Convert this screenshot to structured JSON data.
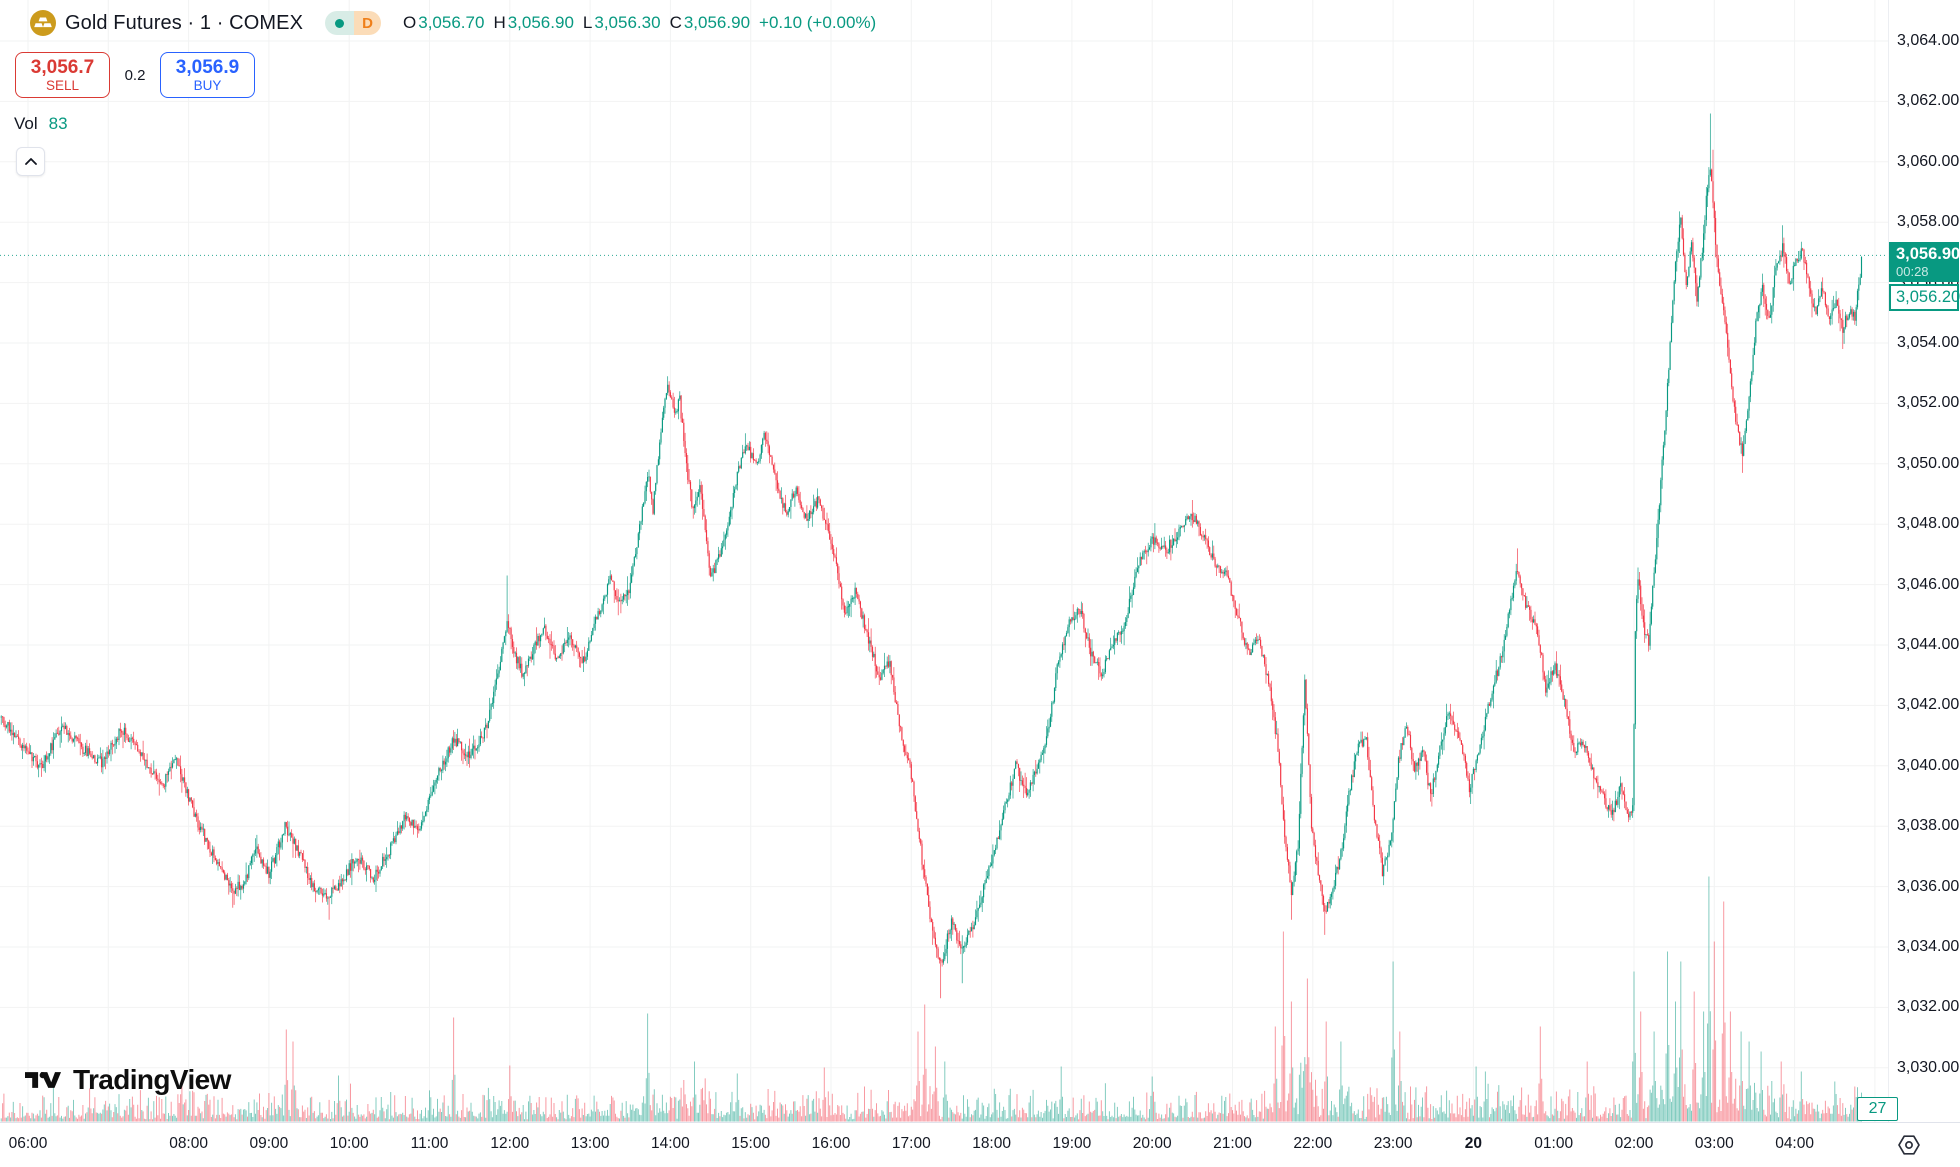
{
  "header": {
    "symbol_title": "Gold Futures · 1 · COMEX",
    "interval_letter": "D",
    "ohlc": {
      "o_label": "O",
      "o": "3,056.70",
      "h_label": "H",
      "h": "3,056.90",
      "l_label": "L",
      "l": "3,056.30",
      "c_label": "C",
      "c": "3,056.90",
      "change": "+0.10 (+0.00%)"
    },
    "sell_button": {
      "price": "3,056.7",
      "label": "SELL"
    },
    "spread": "0.2",
    "buy_button": {
      "price": "3,056.9",
      "label": "BUY"
    },
    "volume_row": {
      "label": "Vol",
      "value": "83"
    }
  },
  "last_price_label": {
    "price": "3,056.90",
    "countdown": "00:28"
  },
  "secondary_price_label": "3,056.20",
  "volume_axis_label": "27",
  "logo_text": "TradingView",
  "colors": {
    "up": "#089981",
    "down": "#f23645",
    "vol_up": "rgba(8,153,129,0.5)",
    "vol_down": "rgba(242,54,69,0.5)",
    "sell_red": "#da3a34",
    "buy_blue": "#2962ff",
    "accent_teal": "#089981",
    "interval_orange": "#ef7f1a",
    "grid": "rgba(42,46,57,0.06)",
    "text": "#131722"
  },
  "price_axis": {
    "ticks": [
      {
        "price": 3064,
        "label": "3,064.00"
      },
      {
        "price": 3062,
        "label": "3,062.00"
      },
      {
        "price": 3060,
        "label": "3,060.00"
      },
      {
        "price": 3058,
        "label": "3,058.00"
      },
      {
        "price": 3056,
        "label": "3,056.00"
      },
      {
        "price": 3054,
        "label": "3,054.00"
      },
      {
        "price": 3052,
        "label": "3,052.00"
      },
      {
        "price": 3050,
        "label": "3,050.00"
      },
      {
        "price": 3048,
        "label": "3,048.00"
      },
      {
        "price": 3046,
        "label": "3,046.00"
      },
      {
        "price": 3044,
        "label": "3,044.00"
      },
      {
        "price": 3042,
        "label": "3,042.00"
      },
      {
        "price": 3040,
        "label": "3,040.00"
      },
      {
        "price": 3038,
        "label": "3,038.00"
      },
      {
        "price": 3036,
        "label": "3,036.00"
      },
      {
        "price": 3034,
        "label": "3,034.00"
      },
      {
        "price": 3032,
        "label": "3,032.00"
      },
      {
        "price": 3030,
        "label": "3,030.00"
      }
    ]
  },
  "time_axis": {
    "grid_hours": [
      0,
      1,
      2,
      3,
      4,
      5,
      6,
      7,
      8,
      9,
      10,
      11,
      12,
      13,
      14,
      15,
      16,
      17,
      18,
      19,
      20,
      21,
      22,
      23
    ],
    "ticks": [
      {
        "label": "06:00",
        "h": 0
      },
      {
        "label": "08:00",
        "h": 2
      },
      {
        "label": "09:00",
        "h": 3
      },
      {
        "label": "10:00",
        "h": 4
      },
      {
        "label": "11:00",
        "h": 5
      },
      {
        "label": "12:00",
        "h": 6
      },
      {
        "label": "13:00",
        "h": 7
      },
      {
        "label": "14:00",
        "h": 8
      },
      {
        "label": "15:00",
        "h": 9
      },
      {
        "label": "16:00",
        "h": 10
      },
      {
        "label": "17:00",
        "h": 11
      },
      {
        "label": "18:00",
        "h": 12
      },
      {
        "label": "19:00",
        "h": 13
      },
      {
        "label": "20:00",
        "h": 14
      },
      {
        "label": "21:00",
        "h": 15
      },
      {
        "label": "22:00",
        "h": 16
      },
      {
        "label": "23:00",
        "h": 17
      },
      {
        "label": "20",
        "h": 18,
        "bold": true
      },
      {
        "label": "01:00",
        "h": 19
      },
      {
        "label": "02:00",
        "h": 20
      },
      {
        "label": "03:00",
        "h": 21
      },
      {
        "label": "04:00",
        "h": 22
      }
    ]
  },
  "chart_data": {
    "type": "candlestick",
    "title": "Gold Futures · 1 · COMEX",
    "interval_minutes": 1,
    "session_summary": {
      "open": 3056.7,
      "high": 3056.9,
      "low": 3056.3,
      "close": 3056.9,
      "change": 0.1,
      "change_pct": 0.0,
      "volume": 83
    },
    "ylim": [
      3028.7,
      3065.4
    ],
    "price_tick_step": 2,
    "time_range": {
      "start": "05:40",
      "end": "04:50"
    },
    "last_price": 3056.9,
    "last_bar_volume": 27,
    "grid": true,
    "waypoints": [
      [
        "05:40",
        3041.6
      ],
      [
        "06:10",
        3039.9
      ],
      [
        "06:25",
        3041.4
      ],
      [
        "06:40",
        3040.6
      ],
      [
        "06:55",
        3040.1
      ],
      [
        "07:10",
        3041.2
      ],
      [
        "07:25",
        3040.4
      ],
      [
        "07:40",
        3039.3
      ],
      [
        "07:50",
        3040.2
      ],
      [
        "08:05",
        3038.3
      ],
      [
        "08:20",
        3036.9
      ],
      [
        "08:33",
        3035.9
      ],
      [
        "08:42",
        3036.1
      ],
      [
        "08:50",
        3037.3
      ],
      [
        "09:00",
        3036.4
      ],
      [
        "09:12",
        3038.0
      ],
      [
        "09:22",
        3037.2
      ],
      [
        "09:33",
        3036.0
      ],
      [
        "09:45",
        3035.7
      ],
      [
        "09:55",
        3036.2
      ],
      [
        "10:05",
        3037.0
      ],
      [
        "10:18",
        3036.3
      ],
      [
        "10:30",
        3037.2
      ],
      [
        "10:42",
        3038.4
      ],
      [
        "10:52",
        3037.7
      ],
      [
        "11:05",
        3039.6
      ],
      [
        "11:18",
        3040.9
      ],
      [
        "11:30",
        3040.3
      ],
      [
        "11:42",
        3041.2
      ],
      [
        "11:52",
        3043.2
      ],
      [
        "11:58",
        3044.9
      ],
      [
        "12:03",
        3043.8
      ],
      [
        "12:10",
        3043.0
      ],
      [
        "12:18",
        3043.9
      ],
      [
        "12:26",
        3044.5
      ],
      [
        "12:35",
        3043.6
      ],
      [
        "12:45",
        3044.3
      ],
      [
        "12:55",
        3043.5
      ],
      [
        "13:05",
        3044.9
      ],
      [
        "13:15",
        3046.2
      ],
      [
        "13:22",
        3045.3
      ],
      [
        "13:30",
        3045.9
      ],
      [
        "13:38",
        3048.2
      ],
      [
        "13:43",
        3049.7
      ],
      [
        "13:47",
        3048.5
      ],
      [
        "13:53",
        3051.1
      ],
      [
        "13:58",
        3052.6
      ],
      [
        "14:03",
        3051.6
      ],
      [
        "14:07",
        3052.1
      ],
      [
        "14:12",
        3049.9
      ],
      [
        "14:17",
        3048.4
      ],
      [
        "14:22",
        3049.4
      ],
      [
        "14:30",
        3046.2
      ],
      [
        "14:40",
        3047.4
      ],
      [
        "14:48",
        3049.2
      ],
      [
        "14:56",
        3050.7
      ],
      [
        "15:04",
        3049.9
      ],
      [
        "15:10",
        3050.9
      ],
      [
        "15:18",
        3049.6
      ],
      [
        "15:26",
        3048.4
      ],
      [
        "15:34",
        3049.1
      ],
      [
        "15:42",
        3048.1
      ],
      [
        "15:50",
        3048.8
      ],
      [
        "16:00",
        3047.5
      ],
      [
        "16:10",
        3045.1
      ],
      [
        "16:18",
        3045.8
      ],
      [
        "16:28",
        3044.2
      ],
      [
        "16:36",
        3042.9
      ],
      [
        "16:44",
        3043.4
      ],
      [
        "16:52",
        3041.1
      ],
      [
        "17:00",
        3039.7
      ],
      [
        "17:08",
        3036.9
      ],
      [
        "17:15",
        3034.7
      ],
      [
        "17:22",
        3033.4
      ],
      [
        "17:30",
        3034.8
      ],
      [
        "17:38",
        3033.9
      ],
      [
        "17:46",
        3034.7
      ],
      [
        "17:54",
        3035.9
      ],
      [
        "18:02",
        3037.2
      ],
      [
        "18:10",
        3038.6
      ],
      [
        "18:18",
        3040.0
      ],
      [
        "18:26",
        3039.1
      ],
      [
        "18:34",
        3039.9
      ],
      [
        "18:42",
        3041.1
      ],
      [
        "18:50",
        3043.5
      ],
      [
        "18:58",
        3044.8
      ],
      [
        "19:06",
        3045.2
      ],
      [
        "19:14",
        3043.8
      ],
      [
        "19:22",
        3043.0
      ],
      [
        "19:30",
        3043.9
      ],
      [
        "19:40",
        3044.8
      ],
      [
        "19:50",
        3046.7
      ],
      [
        "20:00",
        3047.5
      ],
      [
        "20:10",
        3047.1
      ],
      [
        "20:20",
        3047.8
      ],
      [
        "20:30",
        3048.3
      ],
      [
        "20:40",
        3047.4
      ],
      [
        "20:48",
        3046.6
      ],
      [
        "20:56",
        3046.3
      ],
      [
        "21:04",
        3044.9
      ],
      [
        "21:12",
        3043.7
      ],
      [
        "21:19",
        3044.3
      ],
      [
        "21:27",
        3042.8
      ],
      [
        "21:34",
        3040.6
      ],
      [
        "21:39",
        3037.6
      ],
      [
        "21:44",
        3035.9
      ],
      [
        "21:49",
        3037.4
      ],
      [
        "21:54",
        3042.9
      ],
      [
        "21:59",
        3038.1
      ],
      [
        "22:04",
        3036.5
      ],
      [
        "22:09",
        3035.2
      ],
      [
        "22:14",
        3035.9
      ],
      [
        "22:20",
        3036.8
      ],
      [
        "22:27",
        3039.0
      ],
      [
        "22:33",
        3040.6
      ],
      [
        "22:40",
        3040.8
      ],
      [
        "22:46",
        3038.3
      ],
      [
        "22:52",
        3036.5
      ],
      [
        "22:58",
        3037.4
      ],
      [
        "23:04",
        3040.2
      ],
      [
        "23:10",
        3041.4
      ],
      [
        "23:16",
        3039.8
      ],
      [
        "23:22",
        3040.6
      ],
      [
        "23:28",
        3039.0
      ],
      [
        "23:34",
        3040.3
      ],
      [
        "23:42",
        3041.9
      ],
      [
        "23:50",
        3040.8
      ],
      [
        "23:57",
        3039.3
      ],
      [
        "00:04",
        3040.4
      ],
      [
        "00:12",
        3042.1
      ],
      [
        "00:20",
        3043.5
      ],
      [
        "00:27",
        3045.1
      ],
      [
        "00:33",
        3046.6
      ],
      [
        "00:40",
        3045.2
      ],
      [
        "00:47",
        3044.7
      ],
      [
        "00:54",
        3042.6
      ],
      [
        "01:01",
        3043.3
      ],
      [
        "01:08",
        3042.1
      ],
      [
        "01:15",
        3040.4
      ],
      [
        "01:22",
        3040.8
      ],
      [
        "01:29",
        3039.8
      ],
      [
        "01:36",
        3039.1
      ],
      [
        "01:43",
        3038.3
      ],
      [
        "01:50",
        3039.3
      ],
      [
        "01:56",
        3038.4
      ],
      [
        "01:59",
        3038.6
      ],
      [
        "02:01",
        3044.5
      ],
      [
        "02:03",
        3046.2
      ],
      [
        "02:07",
        3044.6
      ],
      [
        "02:11",
        3044.1
      ],
      [
        "02:15",
        3046.4
      ],
      [
        "02:19",
        3048.8
      ],
      [
        "02:23",
        3051.2
      ],
      [
        "02:27",
        3053.9
      ],
      [
        "02:31",
        3056.7
      ],
      [
        "02:35",
        3058.1
      ],
      [
        "02:39",
        3055.8
      ],
      [
        "02:43",
        3057.3
      ],
      [
        "02:47",
        3055.5
      ],
      [
        "02:51",
        3057.1
      ],
      [
        "02:55",
        3059.3
      ],
      [
        "02:57",
        3059.9
      ],
      [
        "02:59",
        3058.6
      ],
      [
        "03:02",
        3056.7
      ],
      [
        "03:06",
        3055.3
      ],
      [
        "03:11",
        3053.5
      ],
      [
        "03:16",
        3051.3
      ],
      [
        "03:21",
        3050.4
      ],
      [
        "03:26",
        3052.1
      ],
      [
        "03:31",
        3054.7
      ],
      [
        "03:36",
        3055.8
      ],
      [
        "03:41",
        3054.7
      ],
      [
        "03:46",
        3056.4
      ],
      [
        "03:51",
        3057.2
      ],
      [
        "03:56",
        3056.0
      ],
      [
        "04:01",
        3056.7
      ],
      [
        "04:06",
        3057.1
      ],
      [
        "04:11",
        3055.8
      ],
      [
        "04:16",
        3055.0
      ],
      [
        "04:21",
        3055.8
      ],
      [
        "04:26",
        3054.8
      ],
      [
        "04:31",
        3055.4
      ],
      [
        "04:36",
        3054.5
      ],
      [
        "04:41",
        3055.1
      ],
      [
        "04:45",
        3054.9
      ],
      [
        "04:49",
        3056.3
      ],
      [
        "04:50",
        3056.9
      ]
    ],
    "wick_spikes": [
      [
        "08:33",
        3035.3,
        "low"
      ],
      [
        "09:45",
        3034.9,
        "low"
      ],
      [
        "11:58",
        3046.3,
        "high"
      ],
      [
        "13:58",
        3052.9,
        "high"
      ],
      [
        "17:22",
        3032.3,
        "low"
      ],
      [
        "17:38",
        3032.8,
        "low"
      ],
      [
        "20:30",
        3048.8,
        "high"
      ],
      [
        "21:44",
        3034.9,
        "low"
      ],
      [
        "22:09",
        3034.4,
        "low"
      ],
      [
        "00:33",
        3047.2,
        "high"
      ],
      [
        "02:57",
        3061.6,
        "high"
      ],
      [
        "02:59",
        3060.4,
        "high"
      ],
      [
        "03:21",
        3049.7,
        "low"
      ],
      [
        "03:51",
        3057.9,
        "high"
      ],
      [
        "04:36",
        3053.8,
        "low"
      ]
    ],
    "volume_spikes": [
      [
        "07:55",
        38
      ],
      [
        "09:13",
        92
      ],
      [
        "09:18",
        80
      ],
      [
        "09:52",
        46
      ],
      [
        "11:18",
        104
      ],
      [
        "12:00",
        56
      ],
      [
        "13:43",
        108
      ],
      [
        "14:18",
        60
      ],
      [
        "14:50",
        48
      ],
      [
        "15:55",
        54
      ],
      [
        "17:05",
        90
      ],
      [
        "17:10",
        117
      ],
      [
        "17:18",
        75
      ],
      [
        "17:25",
        60
      ],
      [
        "18:52",
        55
      ],
      [
        "20:00",
        45
      ],
      [
        "21:32",
        95
      ],
      [
        "21:38",
        190
      ],
      [
        "21:44",
        120
      ],
      [
        "21:56",
        143
      ],
      [
        "22:10",
        100
      ],
      [
        "22:21",
        80
      ],
      [
        "23:00",
        160
      ],
      [
        "23:05",
        90
      ],
      [
        "00:02",
        55
      ],
      [
        "00:09",
        50
      ],
      [
        "00:50",
        95
      ],
      [
        "01:25",
        60
      ],
      [
        "02:00",
        150
      ],
      [
        "02:05",
        110
      ],
      [
        "02:15",
        90
      ],
      [
        "02:25",
        170
      ],
      [
        "02:31",
        120
      ],
      [
        "02:35",
        160
      ],
      [
        "02:45",
        130
      ],
      [
        "02:52",
        110
      ],
      [
        "02:56",
        245
      ],
      [
        "03:00",
        180
      ],
      [
        "03:07",
        220
      ],
      [
        "03:12",
        110
      ],
      [
        "03:20",
        90
      ],
      [
        "03:26",
        80
      ],
      [
        "03:35",
        70
      ],
      [
        "03:50",
        60
      ],
      [
        "04:05",
        50
      ],
      [
        "04:30",
        40
      ],
      [
        "04:45",
        35
      ]
    ]
  }
}
